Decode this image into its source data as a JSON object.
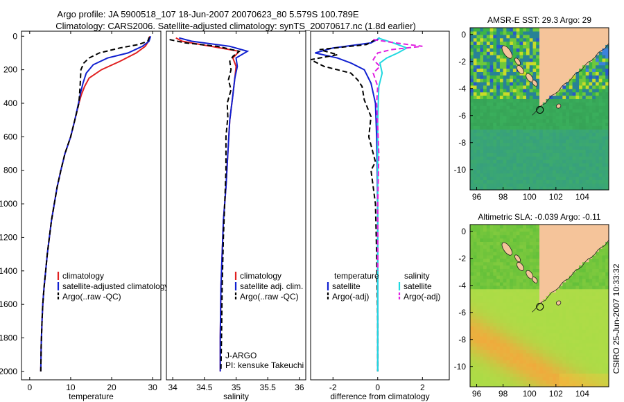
{
  "header": {
    "line1": "Argo profile: JA 5900518_107 18-Jun-2007 20070623_80 5.579S 100.789E",
    "line2": "Climatology: CARS2006. Satellite-adjusted climatology: synTS_20070617.nc (1.8d earlier)"
  },
  "side_text": "CSIRO 25-Jun-2007 10:33:32",
  "colors": {
    "climatology": "#e02020",
    "satellite": "#1020d0",
    "argo": "#000000",
    "sal_sat": "#20d8e0",
    "sal_argo": "#e020e0",
    "land": "#f5c49a"
  },
  "chart_data": [
    {
      "type": "line",
      "id": "temperature",
      "xlabel": "temperature",
      "ylabel": "",
      "xlim": [
        -2,
        32
      ],
      "ylim": [
        2050,
        -30
      ],
      "xticks": [
        0,
        10,
        20,
        30
      ],
      "yticks": [
        0,
        200,
        400,
        600,
        800,
        1000,
        1200,
        1400,
        1600,
        1800,
        2000
      ],
      "legend": [
        "climatology",
        "satellite-adjusted climatology",
        "Argo(..raw -QC)"
      ],
      "series": [
        {
          "name": "climatology",
          "style": "solid",
          "color": "#e02020",
          "x": [
            29.3,
            29.0,
            28.2,
            26.0,
            22.0,
            17.5,
            14.5,
            13.4,
            12.6,
            12.0,
            11.0,
            10.0,
            8.6,
            7.6,
            6.7,
            6.0,
            5.3,
            4.8,
            4.3,
            3.9,
            3.5,
            3.2,
            3.0,
            2.8,
            2.7
          ],
          "y": [
            0,
            30,
            60,
            100,
            150,
            200,
            250,
            300,
            350,
            400,
            500,
            600,
            700,
            800,
            900,
            1000,
            1100,
            1200,
            1300,
            1400,
            1500,
            1600,
            1700,
            1850,
            2000
          ]
        },
        {
          "name": "satellite-adjusted climatology",
          "style": "solid",
          "color": "#1020d0",
          "x": [
            29.5,
            29.1,
            27.5,
            24.0,
            19.0,
            15.5,
            13.8,
            13.0,
            12.4,
            11.9,
            11.0,
            10.0,
            8.6,
            7.6,
            6.7,
            6.0,
            5.3,
            4.8,
            4.3,
            3.9,
            3.5,
            3.2,
            3.0,
            2.8,
            2.7
          ],
          "y": [
            0,
            30,
            60,
            100,
            130,
            170,
            220,
            280,
            340,
            400,
            500,
            600,
            700,
            800,
            900,
            1000,
            1100,
            1200,
            1300,
            1400,
            1500,
            1600,
            1700,
            1850,
            2000
          ]
        },
        {
          "name": "Argo(..raw -QC)",
          "style": "dashed",
          "color": "#000000",
          "x": [
            29.2,
            28.8,
            26.5,
            22.0,
            17.0,
            14.5,
            13.2,
            12.5,
            12.3,
            12.0,
            11.0,
            10.0,
            8.6,
            7.6,
            6.7,
            6.0,
            5.3,
            4.8,
            4.3,
            3.9,
            3.5,
            3.2,
            3.0,
            2.8,
            2.7
          ],
          "y": [
            5,
            30,
            50,
            70,
            100,
            130,
            160,
            200,
            300,
            400,
            500,
            600,
            700,
            800,
            900,
            1000,
            1100,
            1200,
            1300,
            1400,
            1500,
            1600,
            1700,
            1850,
            2000
          ]
        }
      ]
    },
    {
      "type": "line",
      "id": "salinity",
      "xlabel": "salinity",
      "xlim": [
        33.9,
        36.1
      ],
      "ylim": [
        2050,
        -30
      ],
      "xticks": [
        34,
        34.5,
        35,
        35.5,
        36
      ],
      "legend": [
        "climatology",
        "satellite adj. clim.",
        "Argo(..raw -QC)"
      ],
      "annotation": [
        "J-ARGO",
        "PI: kensuke Takeuchi"
      ],
      "series": [
        {
          "name": "climatology",
          "style": "solid",
          "color": "#e02020",
          "x": [
            34.05,
            34.15,
            34.6,
            35.05,
            34.95,
            35.0,
            34.98,
            34.95,
            34.9,
            34.87,
            34.84,
            34.8,
            34.78,
            34.76,
            34.75,
            34.75
          ],
          "y": [
            10,
            30,
            60,
            90,
            130,
            180,
            250,
            350,
            500,
            700,
            900,
            1100,
            1300,
            1500,
            1800,
            2000
          ]
        },
        {
          "name": "satellite adj. clim.",
          "style": "solid",
          "color": "#1020d0",
          "x": [
            34.1,
            34.3,
            34.9,
            35.18,
            35.0,
            35.02,
            34.98,
            34.95,
            34.9,
            34.87,
            34.84,
            34.8,
            34.78,
            34.76,
            34.75,
            34.75
          ],
          "y": [
            10,
            30,
            60,
            90,
            130,
            180,
            250,
            350,
            500,
            700,
            900,
            1100,
            1300,
            1500,
            1800,
            2000
          ]
        },
        {
          "name": "Argo(..raw -QC)",
          "style": "dashed",
          "color": "#000000",
          "x": [
            33.95,
            34.2,
            34.7,
            35.05,
            34.95,
            34.9,
            34.92,
            34.88,
            34.92,
            34.86,
            34.87,
            34.84,
            34.84,
            34.82,
            34.8,
            34.78,
            34.77,
            34.76
          ],
          "y": [
            20,
            40,
            60,
            90,
            120,
            150,
            200,
            260,
            320,
            400,
            480,
            600,
            800,
            1000,
            1200,
            1500,
            1800,
            2000
          ]
        }
      ]
    },
    {
      "type": "line",
      "id": "difference",
      "xlabel": "difference from climatology",
      "xlim": [
        -3,
        3.2
      ],
      "ylim": [
        2050,
        -30
      ],
      "xticks": [
        -2,
        0,
        2
      ],
      "legend_temperature": [
        "temperature",
        "satellite",
        "Argo(-adj)"
      ],
      "legend_salinity": [
        "salinity",
        "satellite",
        "Argo(-adj)"
      ],
      "series": [
        {
          "name": "temperature satellite",
          "style": "solid",
          "color": "#1020d0",
          "x": [
            0.1,
            -0.3,
            -2.0,
            -2.8,
            -1.8,
            -1.2,
            -0.6,
            -0.3,
            -0.1,
            -0.05,
            -0.02,
            0.0,
            0.0,
            0.0,
            0.0
          ],
          "y": [
            10,
            40,
            70,
            100,
            130,
            160,
            200,
            280,
            400,
            600,
            800,
            1100,
            1400,
            1700,
            2000
          ]
        },
        {
          "name": "temperature Argo(-adj)",
          "style": "dashed",
          "color": "#000000",
          "x": [
            -0.1,
            -0.5,
            -2.6,
            -1.8,
            -3.0,
            -2.4,
            -1.2,
            -0.9,
            -0.7,
            -0.6,
            -0.3,
            -0.4,
            -0.2,
            -0.1,
            -0.3,
            -0.25,
            -0.1,
            -0.05,
            0.0,
            0.0
          ],
          "y": [
            20,
            50,
            80,
            110,
            140,
            180,
            220,
            260,
            300,
            380,
            480,
            600,
            700,
            750,
            800,
            850,
            1000,
            1300,
            1700,
            2000
          ]
        },
        {
          "name": "salinity satellite",
          "style": "solid",
          "color": "#20d8e0",
          "x": [
            0.0,
            0.7,
            1.3,
            0.9,
            0.4,
            0.1,
            0.2,
            0.05,
            0.0,
            0.0,
            0.0,
            0.0
          ],
          "y": [
            10,
            40,
            70,
            100,
            130,
            160,
            220,
            300,
            500,
            900,
            1400,
            2000
          ]
        },
        {
          "name": "salinity Argo(-adj)",
          "style": "dashed",
          "color": "#e020e0",
          "x": [
            -0.2,
            0.8,
            2.0,
            0.6,
            0.0,
            -0.2,
            0.1,
            -0.2,
            0.0,
            -0.05,
            0.0,
            0.05,
            0.0,
            0.0
          ],
          "y": [
            20,
            40,
            60,
            80,
            100,
            140,
            180,
            220,
            300,
            400,
            550,
            700,
            1000,
            1400
          ]
        }
      ]
    },
    {
      "type": "heatmap",
      "id": "sst_map",
      "title": "AMSR-E SST: 29.3 Argo: 29",
      "xlim": [
        95.5,
        106
      ],
      "ylim": [
        -11.5,
        0.5
      ],
      "xticks": [
        96,
        98,
        100,
        102,
        104
      ],
      "yticks": [
        0,
        -2,
        -4,
        -6,
        -8,
        -10
      ],
      "marker": {
        "lon": 100.789,
        "lat": -5.579
      }
    },
    {
      "type": "heatmap",
      "id": "sla_map",
      "title": "Altimetric SLA: -0.039 Argo: -0.11",
      "xlim": [
        95.5,
        106
      ],
      "ylim": [
        -11.5,
        0.5
      ],
      "xticks": [
        96,
        98,
        100,
        102,
        104
      ],
      "yticks": [
        0,
        -2,
        -4,
        -6,
        -8,
        -10
      ],
      "marker": {
        "lon": 100.789,
        "lat": -5.579
      }
    }
  ]
}
